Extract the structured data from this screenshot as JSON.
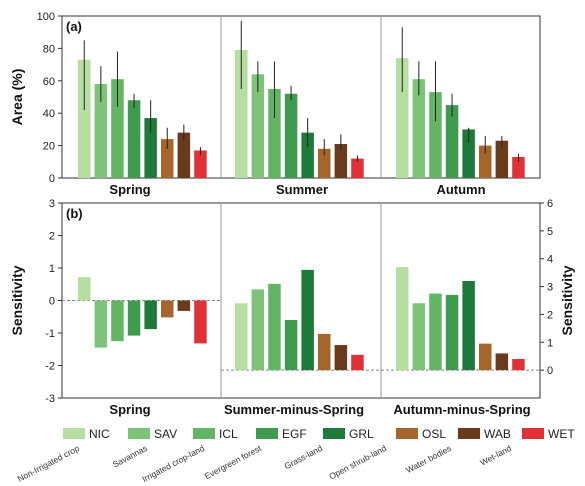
{
  "colors": {
    "NIC": "#b6dea0",
    "SAV": "#7dc47a",
    "ICL": "#64b466",
    "EGF": "#3f9b4f",
    "GRL": "#1e7a3a",
    "OSL": "#a6652a",
    "WAB": "#6a3a1c",
    "WET": "#e03236"
  },
  "legend": {
    "codes": [
      "NIC",
      "SAV",
      "ICL",
      "EGF",
      "GRL",
      "OSL",
      "WAB",
      "WET"
    ],
    "names": [
      "Non-Irrigated crop",
      "Savannas",
      "Irrigated crop-land",
      "Evergreen forest",
      "Grass-land",
      "Open shrub-land",
      "Water bodies",
      "Wet-land"
    ]
  },
  "chart_data": [
    {
      "panel_label": "(a)",
      "type": "bar",
      "ylabel": "Area (%)",
      "ylim": [
        0,
        100
      ],
      "yticks": [
        0,
        20,
        40,
        60,
        80,
        100
      ],
      "groups": [
        "Spring",
        "Summer",
        "Autumn"
      ],
      "series_codes": [
        "NIC",
        "SAV",
        "ICL",
        "EGF",
        "GRL",
        "OSL",
        "WAB",
        "WET"
      ],
      "values": [
        [
          73,
          58,
          61,
          48,
          37,
          24,
          28,
          17
        ],
        [
          79,
          64,
          55,
          52,
          28,
          18,
          21,
          12
        ],
        [
          74,
          61,
          53,
          45,
          30,
          20,
          23,
          13
        ]
      ],
      "error_low": [
        [
          42,
          47,
          44,
          43,
          28,
          18,
          23,
          14
        ],
        [
          55,
          53,
          37,
          48,
          19,
          14,
          17,
          10
        ],
        [
          53,
          51,
          35,
          38,
          22,
          15,
          19,
          10
        ]
      ],
      "error_high": [
        [
          85,
          69,
          78,
          52,
          48,
          31,
          33,
          19
        ],
        [
          97,
          72,
          72,
          57,
          37,
          24,
          27,
          14
        ],
        [
          93,
          72,
          72,
          52,
          31,
          26,
          26,
          15
        ]
      ]
    },
    {
      "panel_label": "(b)",
      "type": "bar",
      "ylabel_left": "Sensitivity",
      "ylabel_right": "Sensitivity",
      "left_ylim": [
        -3,
        3
      ],
      "left_yticks": [
        -3,
        -2,
        -1,
        0,
        1,
        2,
        3
      ],
      "right_ylim": [
        -1,
        6
      ],
      "right_yticks": [
        0,
        1,
        2,
        3,
        4,
        5,
        6
      ],
      "groups": [
        "Spring",
        "Summer-minus-Spring",
        "Autumn-minus-Spring"
      ],
      "series_codes": [
        "NIC",
        "SAV",
        "ICL",
        "EGF",
        "GRL",
        "OSL",
        "WAB",
        "WET"
      ],
      "spring_values": [
        0.72,
        -1.45,
        -1.25,
        -1.08,
        -0.88,
        -0.52,
        -0.32,
        -1.32
      ],
      "summer_minus_spring_values": [
        2.4,
        2.9,
        3.1,
        1.8,
        3.6,
        1.3,
        0.9,
        0.55
      ],
      "autumn_minus_spring_values": [
        3.7,
        2.4,
        2.75,
        2.7,
        3.2,
        0.95,
        0.6,
        0.4
      ]
    }
  ]
}
